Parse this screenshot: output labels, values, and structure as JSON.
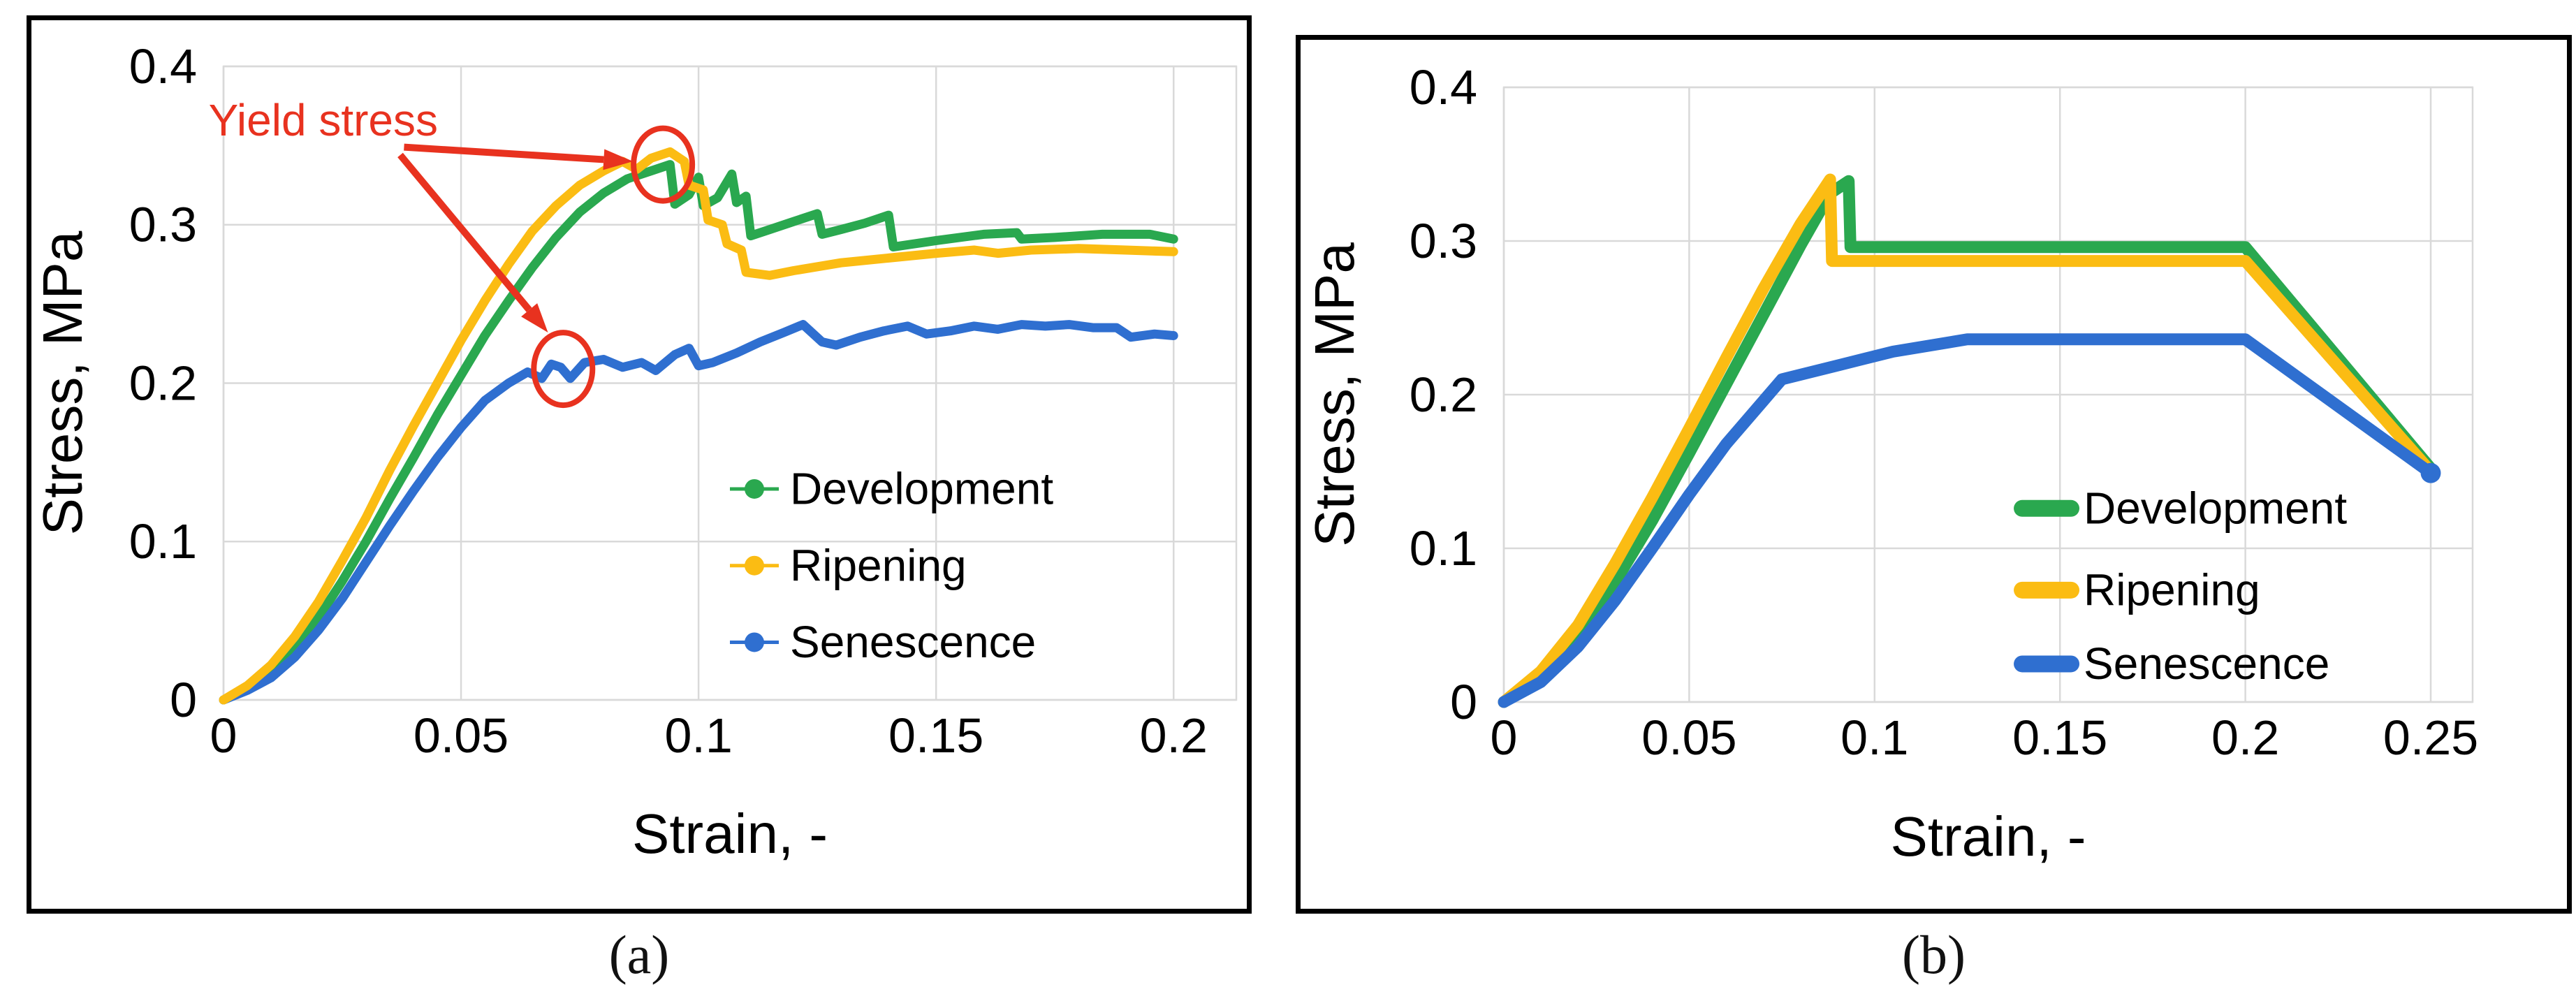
{
  "figure": {
    "captions": {
      "a": "(a)",
      "b": "(b)"
    },
    "background": "#ffffff",
    "panel_border_color": "#000000"
  },
  "colors": {
    "development": "#2aa84f",
    "ripening": "#fbbc13",
    "senescence": "#2f6fd0",
    "annotation": "#e8321f",
    "gridline": "#d9d9d9",
    "text": "#000000"
  },
  "chart_data": [
    {
      "id": "a",
      "type": "line",
      "title": "",
      "xlabel": "Strain, -",
      "ylabel": "Stress, MPa",
      "xlim": [
        0,
        0.2132
      ],
      "ylim": [
        0,
        0.4
      ],
      "xticks": [
        0,
        0.05,
        0.1,
        0.15,
        0.2
      ],
      "xtick_labels": [
        "0",
        "0.05",
        "0.1",
        "0.15",
        "0.2"
      ],
      "yticks": [
        0,
        0.1,
        0.2,
        0.3,
        0.4
      ],
      "ytick_labels": [
        "0",
        "0.1",
        "0.2",
        "0.3",
        "0.4"
      ],
      "grid": true,
      "legend_position": "inside-right",
      "legend": {
        "marker": "line-dot",
        "fx": 0.5,
        "rows_fy": [
          0.667,
          0.788,
          0.909
        ]
      },
      "draw_order": [
        0,
        2,
        1
      ],
      "series": [
        {
          "name": "Development",
          "color": "development",
          "width": 13,
          "points": [
            [
              0,
              0
            ],
            [
              0.005,
              0.007
            ],
            [
              0.01,
              0.017
            ],
            [
              0.015,
              0.032
            ],
            [
              0.02,
              0.052
            ],
            [
              0.025,
              0.075
            ],
            [
              0.03,
              0.1
            ],
            [
              0.035,
              0.127
            ],
            [
              0.04,
              0.153
            ],
            [
              0.045,
              0.18
            ],
            [
              0.05,
              0.205
            ],
            [
              0.055,
              0.23
            ],
            [
              0.06,
              0.252
            ],
            [
              0.065,
              0.273
            ],
            [
              0.07,
              0.292
            ],
            [
              0.075,
              0.308
            ],
            [
              0.08,
              0.32
            ],
            [
              0.085,
              0.329
            ],
            [
              0.09,
              0.334
            ],
            [
              0.094,
              0.338
            ],
            [
              0.095,
              0.313
            ],
            [
              0.098,
              0.319
            ],
            [
              0.1,
              0.33
            ],
            [
              0.101,
              0.312
            ],
            [
              0.104,
              0.317
            ],
            [
              0.107,
              0.332
            ],
            [
              0.108,
              0.314
            ],
            [
              0.11,
              0.318
            ],
            [
              0.111,
              0.293
            ],
            [
              0.115,
              0.297
            ],
            [
              0.12,
              0.302
            ],
            [
              0.125,
              0.307
            ],
            [
              0.126,
              0.294
            ],
            [
              0.13,
              0.297
            ],
            [
              0.135,
              0.301
            ],
            [
              0.14,
              0.306
            ],
            [
              0.141,
              0.286
            ],
            [
              0.15,
              0.29
            ],
            [
              0.16,
              0.294
            ],
            [
              0.167,
              0.295
            ],
            [
              0.168,
              0.291
            ],
            [
              0.175,
              0.292
            ],
            [
              0.185,
              0.294
            ],
            [
              0.195,
              0.294
            ],
            [
              0.2,
              0.291
            ]
          ]
        },
        {
          "name": "Ripening",
          "color": "ripening",
          "width": 13,
          "points": [
            [
              0,
              0
            ],
            [
              0.005,
              0.009
            ],
            [
              0.01,
              0.022
            ],
            [
              0.015,
              0.04
            ],
            [
              0.02,
              0.062
            ],
            [
              0.025,
              0.088
            ],
            [
              0.03,
              0.115
            ],
            [
              0.035,
              0.145
            ],
            [
              0.04,
              0.173
            ],
            [
              0.045,
              0.2
            ],
            [
              0.05,
              0.227
            ],
            [
              0.055,
              0.252
            ],
            [
              0.06,
              0.275
            ],
            [
              0.065,
              0.296
            ],
            [
              0.07,
              0.312
            ],
            [
              0.075,
              0.325
            ],
            [
              0.08,
              0.334
            ],
            [
              0.084,
              0.34
            ],
            [
              0.087,
              0.335
            ],
            [
              0.09,
              0.342
            ],
            [
              0.094,
              0.346
            ],
            [
              0.097,
              0.34
            ],
            [
              0.098,
              0.325
            ],
            [
              0.101,
              0.322
            ],
            [
              0.102,
              0.303
            ],
            [
              0.105,
              0.3
            ],
            [
              0.106,
              0.288
            ],
            [
              0.109,
              0.284
            ],
            [
              0.11,
              0.27
            ],
            [
              0.115,
              0.268
            ],
            [
              0.12,
              0.271
            ],
            [
              0.13,
              0.276
            ],
            [
              0.14,
              0.279
            ],
            [
              0.15,
              0.282
            ],
            [
              0.158,
              0.284
            ],
            [
              0.163,
              0.282
            ],
            [
              0.17,
              0.284
            ],
            [
              0.18,
              0.285
            ],
            [
              0.19,
              0.284
            ],
            [
              0.2,
              0.283
            ]
          ]
        },
        {
          "name": "Senescence",
          "color": "senescence",
          "width": 13,
          "points": [
            [
              0,
              0
            ],
            [
              0.005,
              0.006
            ],
            [
              0.01,
              0.014
            ],
            [
              0.015,
              0.027
            ],
            [
              0.02,
              0.044
            ],
            [
              0.025,
              0.064
            ],
            [
              0.03,
              0.087
            ],
            [
              0.035,
              0.11
            ],
            [
              0.04,
              0.132
            ],
            [
              0.045,
              0.153
            ],
            [
              0.05,
              0.172
            ],
            [
              0.055,
              0.189
            ],
            [
              0.06,
              0.2
            ],
            [
              0.064,
              0.207
            ],
            [
              0.067,
              0.203
            ],
            [
              0.069,
              0.212
            ],
            [
              0.071,
              0.21
            ],
            [
              0.073,
              0.203
            ],
            [
              0.076,
              0.213
            ],
            [
              0.08,
              0.215
            ],
            [
              0.084,
              0.21
            ],
            [
              0.088,
              0.213
            ],
            [
              0.091,
              0.208
            ],
            [
              0.095,
              0.218
            ],
            [
              0.098,
              0.222
            ],
            [
              0.1,
              0.211
            ],
            [
              0.103,
              0.213
            ],
            [
              0.108,
              0.219
            ],
            [
              0.113,
              0.226
            ],
            [
              0.118,
              0.232
            ],
            [
              0.122,
              0.237
            ],
            [
              0.126,
              0.226
            ],
            [
              0.129,
              0.224
            ],
            [
              0.134,
              0.229
            ],
            [
              0.139,
              0.233
            ],
            [
              0.144,
              0.236
            ],
            [
              0.148,
              0.231
            ],
            [
              0.153,
              0.233
            ],
            [
              0.158,
              0.236
            ],
            [
              0.163,
              0.234
            ],
            [
              0.168,
              0.237
            ],
            [
              0.173,
              0.236
            ],
            [
              0.178,
              0.237
            ],
            [
              0.183,
              0.235
            ],
            [
              0.188,
              0.235
            ],
            [
              0.191,
              0.229
            ],
            [
              0.196,
              0.231
            ],
            [
              0.2,
              0.23
            ]
          ]
        }
      ],
      "annotations": {
        "label": {
          "text": "Yield stress",
          "x": 0.021,
          "y": 0.366
        },
        "arrows": [
          {
            "from": [
              0.038,
              0.349
            ],
            "to": [
              0.0862,
              0.34
            ]
          },
          {
            "from": [
              0.0372,
              0.344
            ],
            "to": [
              0.0683,
              0.232
            ]
          }
        ],
        "circles": [
          {
            "x": 0.0925,
            "y": 0.338
          },
          {
            "x": 0.0715,
            "y": 0.209
          }
        ]
      }
    },
    {
      "id": "b",
      "type": "line",
      "title": "",
      "xlabel": "Strain, -",
      "ylabel": "Stress, MPa",
      "xlim": [
        0,
        0.2613
      ],
      "ylim": [
        0,
        0.4
      ],
      "xticks": [
        0,
        0.05,
        0.1,
        0.15,
        0.2,
        0.25
      ],
      "xtick_labels": [
        "0",
        "0.05",
        "0.1",
        "0.15",
        "0.2",
        "0.25"
      ],
      "yticks": [
        0,
        0.1,
        0.2,
        0.3,
        0.4
      ],
      "ytick_labels": [
        "0",
        "0.1",
        "0.2",
        "0.3",
        "0.4"
      ],
      "grid": true,
      "legend_position": "inside-right",
      "legend": {
        "marker": "pill",
        "fx": 0.535,
        "rows_fy": [
          0.685,
          0.818,
          0.938
        ]
      },
      "draw_order": [
        0,
        1,
        2
      ],
      "series": [
        {
          "name": "Development",
          "color": "development",
          "width": 17,
          "points": [
            [
              0,
              0
            ],
            [
              0.01,
              0.016
            ],
            [
              0.02,
              0.042
            ],
            [
              0.03,
              0.078
            ],
            [
              0.04,
              0.118
            ],
            [
              0.05,
              0.162
            ],
            [
              0.06,
              0.207
            ],
            [
              0.07,
              0.252
            ],
            [
              0.08,
              0.297
            ],
            [
              0.088,
              0.331
            ],
            [
              0.093,
              0.339
            ],
            [
              0.0935,
              0.296
            ],
            [
              0.2,
              0.296
            ],
            [
              0.25,
              0.152
            ]
          ]
        },
        {
          "name": "Ripening",
          "color": "ripening",
          "width": 17,
          "points": [
            [
              0,
              0
            ],
            [
              0.01,
              0.02
            ],
            [
              0.02,
              0.05
            ],
            [
              0.03,
              0.09
            ],
            [
              0.04,
              0.133
            ],
            [
              0.05,
              0.178
            ],
            [
              0.06,
              0.224
            ],
            [
              0.07,
              0.269
            ],
            [
              0.08,
              0.311
            ],
            [
              0.088,
              0.34
            ],
            [
              0.0885,
              0.287
            ],
            [
              0.2,
              0.287
            ],
            [
              0.25,
              0.15
            ]
          ]
        },
        {
          "name": "Senescence",
          "color": "senescence",
          "width": 17,
          "end_marker": true,
          "points": [
            [
              0,
              0
            ],
            [
              0.01,
              0.013
            ],
            [
              0.02,
              0.036
            ],
            [
              0.03,
              0.066
            ],
            [
              0.04,
              0.1
            ],
            [
              0.05,
              0.135
            ],
            [
              0.06,
              0.168
            ],
            [
              0.07,
              0.196
            ],
            [
              0.075,
              0.21
            ],
            [
              0.09,
              0.219
            ],
            [
              0.105,
              0.228
            ],
            [
              0.125,
              0.236
            ],
            [
              0.2,
              0.236
            ],
            [
              0.25,
              0.149
            ]
          ]
        }
      ],
      "annotations": null
    }
  ]
}
